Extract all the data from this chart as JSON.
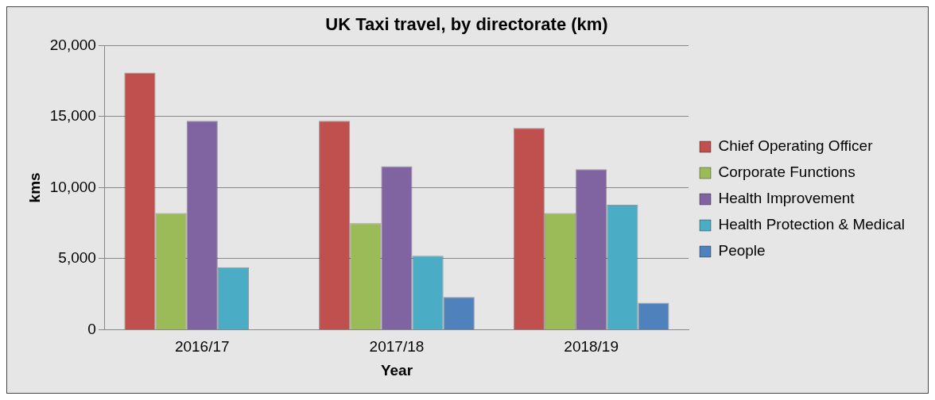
{
  "chart_data": {
    "type": "bar",
    "title": "UK Taxi travel, by directorate (km)",
    "xlabel": "Year",
    "ylabel": "kms",
    "categories": [
      "2016/17",
      "2017/18",
      "2018/19"
    ],
    "series": [
      {
        "name": "Chief Operating Officer",
        "color": "#c0504d",
        "values": [
          18100,
          14700,
          14200
        ]
      },
      {
        "name": "Corporate Functions",
        "color": "#9bbb59",
        "values": [
          8200,
          7500,
          8200
        ]
      },
      {
        "name": "Health Improvement",
        "color": "#8064a2",
        "values": [
          14700,
          11500,
          11300
        ]
      },
      {
        "name": "Health Protection & Medical",
        "color": "#4bacc6",
        "values": [
          4400,
          5200,
          8800
        ]
      },
      {
        "name": "People",
        "color": "#4f81bd",
        "values": [
          null,
          2300,
          1900
        ]
      }
    ],
    "ylim": [
      0,
      20000
    ],
    "yticks": [
      {
        "value": 0,
        "label": "0"
      },
      {
        "value": 5000,
        "label": "5,000"
      },
      {
        "value": 10000,
        "label": "10,000"
      },
      {
        "value": 15000,
        "label": "15,000"
      },
      {
        "value": 20000,
        "label": "20,000"
      }
    ],
    "grid": "y",
    "legend": "right"
  }
}
